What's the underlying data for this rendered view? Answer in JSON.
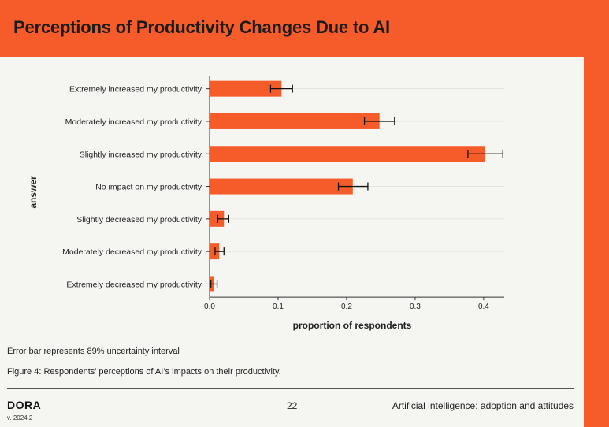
{
  "header": {
    "title": "Perceptions of Productivity Changes Due to AI"
  },
  "colors": {
    "accent": "#f65c2a",
    "bar": "#f65c2a",
    "background": "#f5f5f2"
  },
  "chart_data": {
    "type": "bar",
    "orientation": "horizontal",
    "categories": [
      "Extremely increased my productivity",
      "Moderately increased my productivity",
      "Slightly increased my productivity",
      "No impact on my productivity",
      "Slightly decreased my productivity",
      "Moderately decreased my productivity",
      "Extremely decreased my productivity"
    ],
    "values": [
      0.105,
      0.248,
      0.402,
      0.209,
      0.021,
      0.014,
      0.006
    ],
    "error_low": [
      0.089,
      0.226,
      0.377,
      0.188,
      0.012,
      0.008,
      0.002
    ],
    "error_high": [
      0.121,
      0.27,
      0.428,
      0.231,
      0.028,
      0.021,
      0.011
    ],
    "xlabel": "proportion of respondents",
    "ylabel": "answer",
    "xlim": [
      0,
      0.43
    ],
    "xticks": [
      0.0,
      0.1,
      0.2,
      0.3,
      0.4
    ],
    "xtick_labels": [
      "0.0",
      "0.1",
      "0.2",
      "0.3",
      "0.4"
    ]
  },
  "notes": {
    "error_bar": "Error bar represents 89% uncertainty interval",
    "caption": "Figure 4: Respondents’ perceptions of AI’s impacts on their productivity."
  },
  "footer": {
    "brand": "DORA",
    "version": "v. 2024.2",
    "page_number": "22",
    "section": "Artificial intelligence: adoption and attitudes"
  }
}
